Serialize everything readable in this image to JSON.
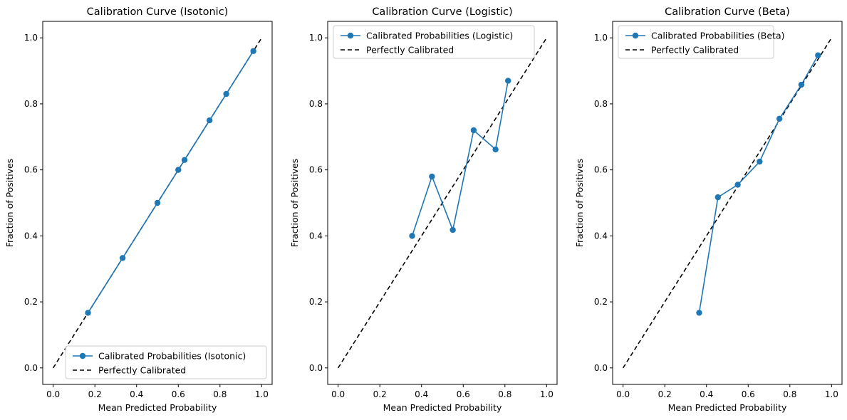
{
  "colors": {
    "series": "#1f77b4",
    "reference": "#000000",
    "legend_border": "#cccccc"
  },
  "chart_data": [
    {
      "type": "line",
      "title": "Calibration Curve (Isotonic)",
      "xlabel": "Mean Predicted Probability",
      "ylabel": "Fraction of Positives",
      "xlim": [
        -0.05,
        1.05
      ],
      "ylim": [
        -0.05,
        1.05
      ],
      "xticks": [
        "0.0",
        "0.2",
        "0.4",
        "0.6",
        "0.8",
        "1.0"
      ],
      "yticks": [
        "0.0",
        "0.2",
        "0.4",
        "0.6",
        "0.8",
        "1.0"
      ],
      "grid": false,
      "legend_position": "lower-right",
      "series": [
        {
          "name": "Calibrated Probabilities (Isotonic)",
          "style": "solid-circle-markers",
          "x": [
            0.167,
            0.333,
            0.5,
            0.6,
            0.63,
            0.75,
            0.83,
            0.96
          ],
          "y": [
            0.167,
            0.333,
            0.5,
            0.6,
            0.63,
            0.75,
            0.83,
            0.96
          ]
        },
        {
          "name": "Perfectly Calibrated",
          "style": "dashed",
          "x": [
            0,
            1
          ],
          "y": [
            0,
            1
          ]
        }
      ]
    },
    {
      "type": "line",
      "title": "Calibration Curve (Logistic)",
      "xlabel": "Mean Predicted Probability",
      "ylabel": "Fraction of Positives",
      "xlim": [
        -0.05,
        1.05
      ],
      "ylim": [
        -0.05,
        1.05
      ],
      "xticks": [
        "0.0",
        "0.2",
        "0.4",
        "0.6",
        "0.8",
        "1.0"
      ],
      "yticks": [
        "0.0",
        "0.2",
        "0.4",
        "0.6",
        "0.8",
        "1.0"
      ],
      "grid": false,
      "legend_position": "top-left",
      "series": [
        {
          "name": "Calibrated Probabilities (Logistic)",
          "style": "solid-circle-markers",
          "x": [
            0.355,
            0.45,
            0.55,
            0.65,
            0.755,
            0.815
          ],
          "y": [
            0.4,
            0.58,
            0.418,
            0.72,
            0.662,
            0.87
          ]
        },
        {
          "name": "Perfectly Calibrated",
          "style": "dashed",
          "x": [
            0,
            1
          ],
          "y": [
            0,
            1
          ]
        }
      ]
    },
    {
      "type": "line",
      "title": "Calibration Curve (Beta)",
      "xlabel": "Mean Predicted Probability",
      "ylabel": "Fraction of Positives",
      "xlim": [
        -0.05,
        1.05
      ],
      "ylim": [
        -0.05,
        1.05
      ],
      "xticks": [
        "0.0",
        "0.2",
        "0.4",
        "0.6",
        "0.8",
        "1.0"
      ],
      "yticks": [
        "0.0",
        "0.2",
        "0.4",
        "0.6",
        "0.8",
        "1.0"
      ],
      "grid": false,
      "legend_position": "top-left",
      "series": [
        {
          "name": "Calibrated Probabilities (Beta)",
          "style": "solid-circle-markers",
          "x": [
            0.365,
            0.455,
            0.55,
            0.655,
            0.75,
            0.855,
            0.935
          ],
          "y": [
            0.167,
            0.517,
            0.555,
            0.625,
            0.755,
            0.858,
            0.947
          ]
        },
        {
          "name": "Perfectly Calibrated",
          "style": "dashed",
          "x": [
            0,
            1
          ],
          "y": [
            0,
            1
          ]
        }
      ]
    }
  ]
}
